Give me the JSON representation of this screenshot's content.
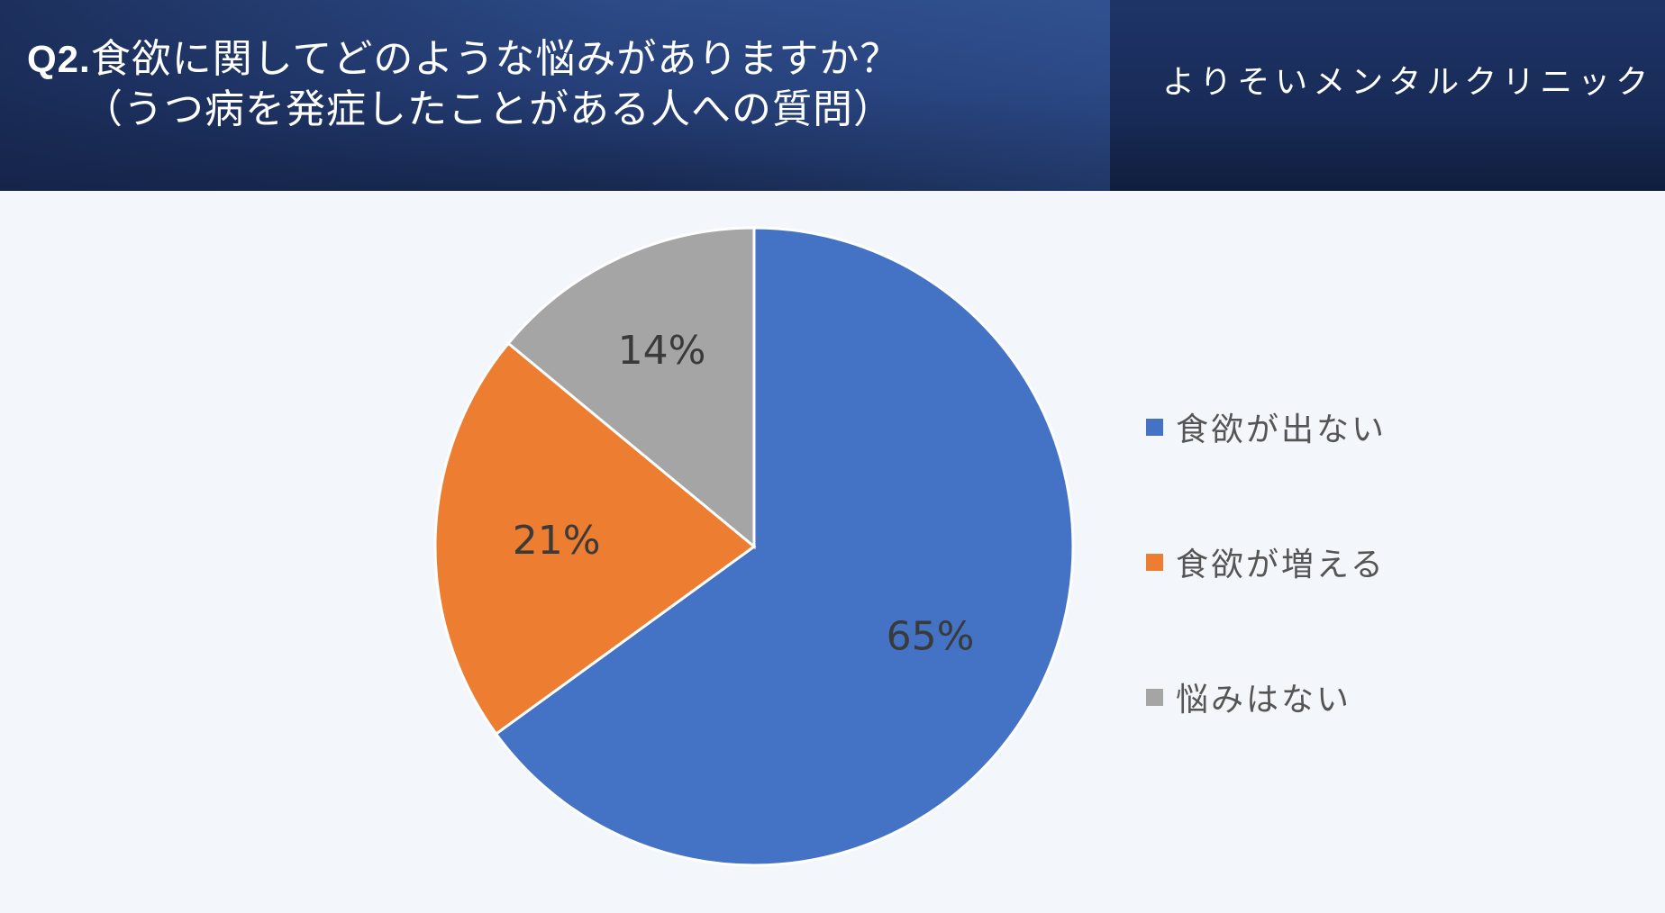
{
  "header": {
    "question_number": "Q2.",
    "title_line1": "食欲に関してどのような悩みがありますか？",
    "title_line2": "（うつ病を発症したことがある人への質問）",
    "clinic_name": "よりそいメンタルクリニック"
  },
  "colors": {
    "header_bg": "#26407a",
    "page_bg": "#f3f6fa",
    "slice_1": "#4472c4",
    "slice_2": "#ed7d31",
    "slice_3": "#a5a5a5"
  },
  "chart_data": {
    "type": "pie",
    "categories": [
      "食欲が出ない",
      "食欲が増える",
      "悩みはない"
    ],
    "values": [
      65,
      21,
      14
    ],
    "labels": [
      "65%",
      "21%",
      "14%"
    ],
    "colors": [
      "#4472c4",
      "#ed7d31",
      "#a5a5a5"
    ],
    "start": "12 o'clock",
    "direction": "clockwise",
    "legend_position": "right"
  }
}
